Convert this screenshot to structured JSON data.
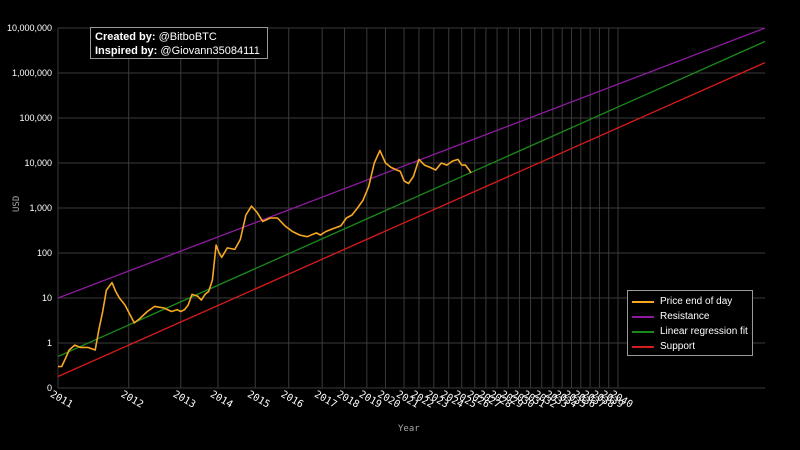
{
  "credits": {
    "created_label": "Created by:",
    "created_value": "@BitboBTC",
    "inspired_label": "Inspired by:",
    "inspired_value": "@Giovann35084111"
  },
  "chart_data": {
    "type": "line",
    "title": "",
    "xlabel": "Year",
    "ylabel": "USD",
    "yscale": "log",
    "ylim": [
      0.1,
      10000000
    ],
    "xlim": [
      2011.0,
      2030.0
    ],
    "grid": true,
    "legend_position": "bottom-right",
    "y_ticks": [
      {
        "value": 0.1,
        "label": "0"
      },
      {
        "value": 1,
        "label": "1"
      },
      {
        "value": 10,
        "label": "10"
      },
      {
        "value": 100,
        "label": "100"
      },
      {
        "value": 1000,
        "label": "1,000"
      },
      {
        "value": 10000,
        "label": "10,000"
      },
      {
        "value": 100000,
        "label": "100,000"
      },
      {
        "value": 1000000,
        "label": "1,000,000"
      },
      {
        "value": 10000000,
        "label": "10,000,000"
      }
    ],
    "x_ticks": [
      {
        "value": 2011.0,
        "label": "2011"
      },
      {
        "value": 2012.9,
        "label": "2012"
      },
      {
        "value": 2014.3,
        "label": "2013"
      },
      {
        "value": 2015.3,
        "label": "2014"
      },
      {
        "value": 2016.3,
        "label": "2015"
      },
      {
        "value": 2017.2,
        "label": "2016"
      },
      {
        "value": 2018.1,
        "label": "2017"
      },
      {
        "value": 2018.7,
        "label": "2018"
      },
      {
        "value": 2019.3,
        "label": "2019"
      },
      {
        "value": 2019.8,
        "label": "2020"
      },
      {
        "value": 2020.3,
        "label": "2021"
      },
      {
        "value": 2020.7,
        "label": "2022"
      },
      {
        "value": 2021.1,
        "label": "2023"
      },
      {
        "value": 2021.5,
        "label": "2024"
      },
      {
        "value": 2021.85,
        "label": "2025"
      },
      {
        "value": 2022.2,
        "label": "2026"
      },
      {
        "value": 2022.5,
        "label": "2027"
      },
      {
        "value": 2022.8,
        "label": "2028"
      },
      {
        "value": 2023.1,
        "label": "2029"
      },
      {
        "value": 2023.4,
        "label": "2030"
      },
      {
        "value": 2023.7,
        "label": "2031"
      },
      {
        "value": 2024.0,
        "label": "2032"
      },
      {
        "value": 2024.3,
        "label": "2033"
      },
      {
        "value": 2024.55,
        "label": "2034"
      },
      {
        "value": 2024.8,
        "label": "2035"
      },
      {
        "value": 2025.05,
        "label": "2036"
      },
      {
        "value": 2025.3,
        "label": "2037"
      },
      {
        "value": 2025.55,
        "label": "2038"
      },
      {
        "value": 2025.8,
        "label": "2039"
      },
      {
        "value": 2026.05,
        "label": "2040"
      }
    ],
    "series": [
      {
        "name": "Price end of day",
        "color": "#f7a823",
        "x": [
          2011.0,
          2011.1,
          2011.2,
          2011.3,
          2011.45,
          2011.6,
          2011.8,
          2012.0,
          2012.1,
          2012.2,
          2012.3,
          2012.45,
          2012.55,
          2012.65,
          2012.8,
          2012.95,
          2013.05,
          2013.2,
          2013.4,
          2013.6,
          2013.85,
          2014.05,
          2014.2,
          2014.3,
          2014.4,
          2014.5,
          2014.6,
          2014.75,
          2014.85,
          2014.95,
          2015.05,
          2015.15,
          2015.25,
          2015.33,
          2015.4,
          2015.55,
          2015.75,
          2015.9,
          2016.05,
          2016.2,
          2016.35,
          2016.5,
          2016.7,
          2016.9,
          2017.1,
          2017.3,
          2017.5,
          2017.7,
          2017.85,
          2017.95,
          2018.05,
          2018.2,
          2018.4,
          2018.6,
          2018.75,
          2018.9,
          2019.05,
          2019.2,
          2019.35,
          2019.5,
          2019.65,
          2019.8,
          2019.95,
          2020.1,
          2020.2,
          2020.3,
          2020.42,
          2020.55,
          2020.7,
          2020.85,
          2021.0,
          2021.15,
          2021.3,
          2021.45,
          2021.6,
          2021.75,
          2021.85,
          2021.95,
          2022.05,
          2022.1
        ],
        "y": [
          0.3,
          0.3,
          0.45,
          0.7,
          0.9,
          0.8,
          0.8,
          0.7,
          2,
          5,
          15,
          22,
          14,
          10,
          7,
          4,
          2.8,
          3.5,
          5,
          6.5,
          6,
          5,
          5.5,
          5,
          5.5,
          7,
          12,
          11,
          9,
          12,
          14,
          25,
          150,
          100,
          80,
          130,
          120,
          200,
          700,
          1100,
          800,
          500,
          600,
          600,
          400,
          300,
          250,
          230,
          260,
          280,
          250,
          300,
          350,
          400,
          600,
          700,
          1000,
          1500,
          3000,
          10000,
          19000,
          10000,
          8000,
          7000,
          6500,
          4000,
          3500,
          5000,
          12000,
          9000,
          8000,
          7000,
          10000,
          9000,
          11000,
          12000,
          9000,
          9000,
          7000,
          6000
        ]
      },
      {
        "name": "Resistance",
        "color": "#8e1aa0",
        "x": [
          2011.0,
          2030.0
        ],
        "y": [
          10,
          10000000
        ]
      },
      {
        "name": "Linear regression fit",
        "color": "#1b8a1b",
        "x": [
          2011.0,
          2030.0
        ],
        "y": [
          0.5,
          5000000
        ]
      },
      {
        "name": "Support",
        "color": "#d81b1b",
        "x": [
          2011.0,
          2030.0
        ],
        "y": [
          0.18,
          1700000
        ]
      }
    ]
  }
}
